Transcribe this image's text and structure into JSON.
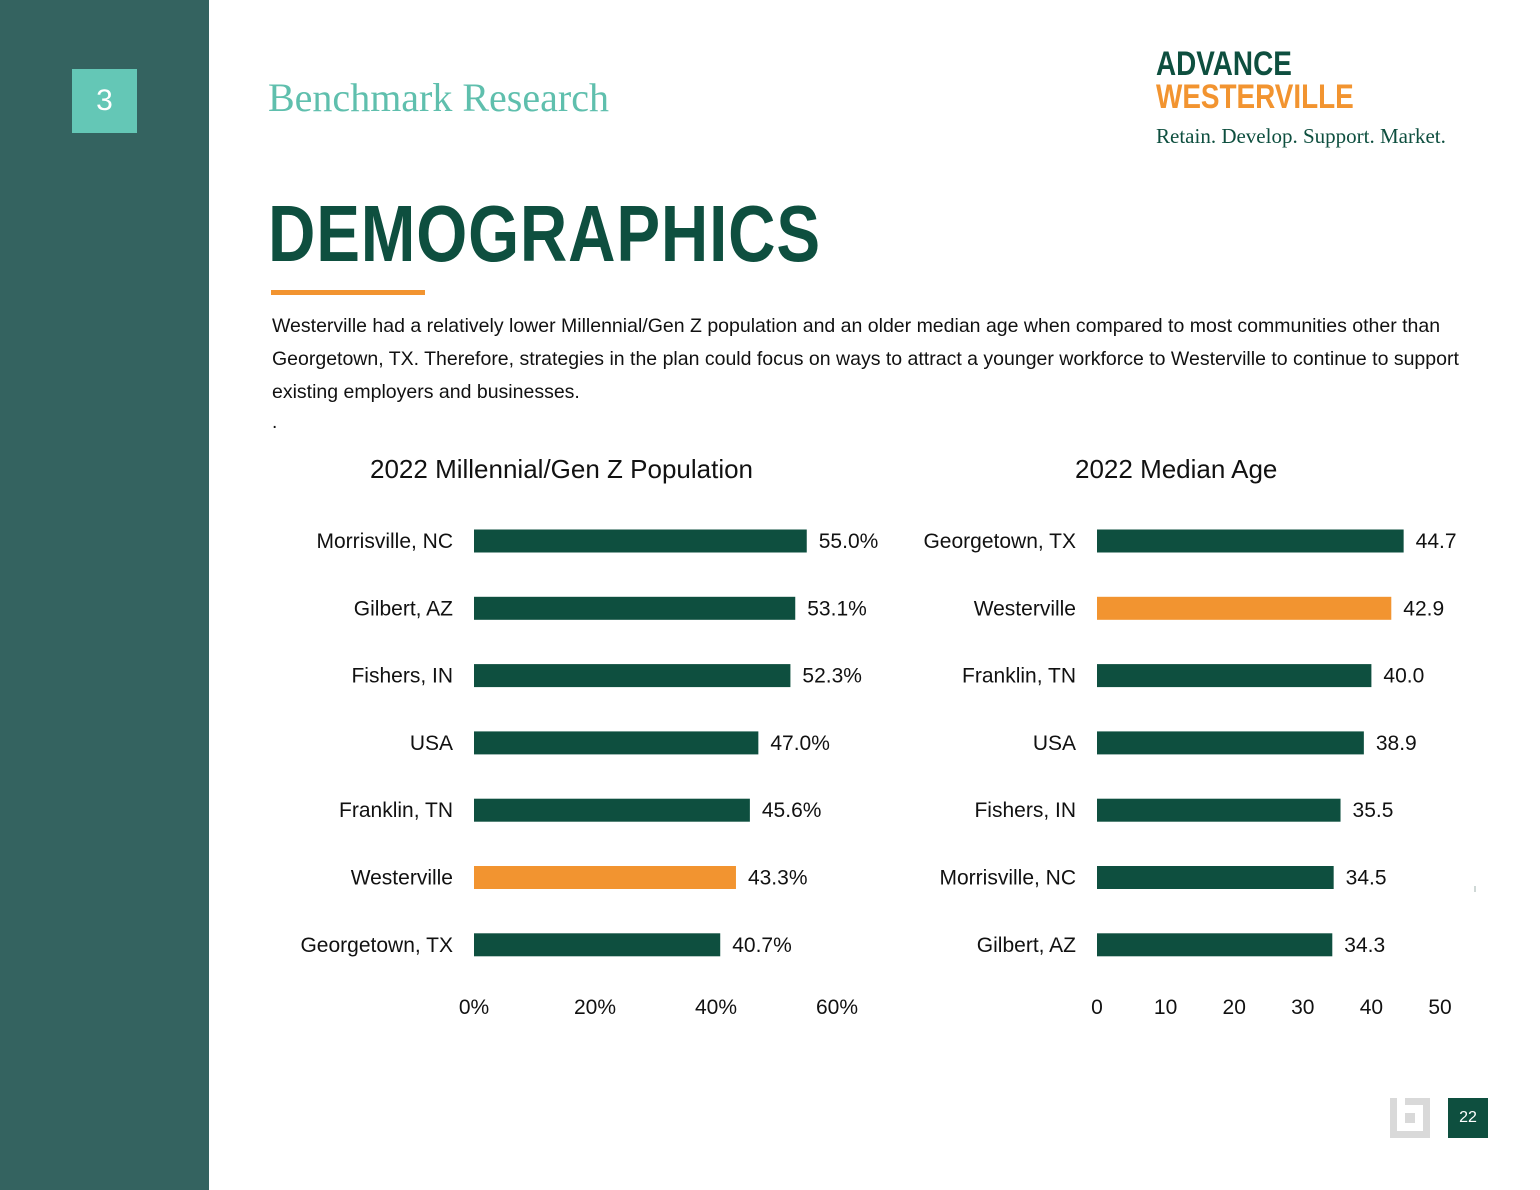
{
  "section": {
    "number": "3",
    "title": "Benchmark Research"
  },
  "logo": {
    "line1": "ADVANCE",
    "line2": "WESTERVILLE",
    "tagline": "Retain. Develop. Support. Market."
  },
  "page": {
    "heading": "DEMOGRAPHICS",
    "intro": "Westerville had a relatively lower Millennial/Gen Z population and an older median age when compared to most communities other than Georgetown, TX. Therefore, strategies in the plan could focus on ways to attract a younger workforce to Westerville to continue to support existing employers and businesses.",
    "stray_dot": ".",
    "page_number": "22"
  },
  "colors": {
    "primary": "#0e4f3f",
    "highlight": "#f29430",
    "sidebar": "#346360",
    "badge": "#64c7b6"
  },
  "chart_data": [
    {
      "type": "bar",
      "orientation": "horizontal",
      "title": "2022 Millennial/Gen Z Population",
      "categories": [
        "Morrisville, NC",
        "Gilbert, AZ",
        "Fishers, IN",
        "USA",
        "Franklin, TN",
        "Westerville",
        "Georgetown, TX"
      ],
      "values": [
        55.0,
        53.1,
        52.3,
        47.0,
        45.6,
        43.3,
        40.7
      ],
      "value_labels": [
        "55.0%",
        "53.1%",
        "52.3%",
        "47.0%",
        "45.6%",
        "43.3%",
        "40.7%"
      ],
      "highlight": "Westerville",
      "xlim": [
        0,
        60
      ],
      "xticks": [
        0,
        20,
        40,
        60
      ],
      "xtick_labels": [
        "0%",
        "20%",
        "40%",
        "60%"
      ],
      "grid": false
    },
    {
      "type": "bar",
      "orientation": "horizontal",
      "title": "2022 Median Age",
      "categories": [
        "Georgetown, TX",
        "Westerville",
        "Franklin, TN",
        "USA",
        "Fishers, IN",
        "Morrisville, NC",
        "Gilbert, AZ"
      ],
      "values": [
        44.7,
        42.9,
        40.0,
        38.9,
        35.5,
        34.5,
        34.3
      ],
      "value_labels": [
        "44.7",
        "42.9",
        "40.0",
        "38.9",
        "35.5",
        "34.5",
        "34.3"
      ],
      "highlight": "Westerville",
      "xlim": [
        0,
        50
      ],
      "xticks": [
        0,
        10,
        20,
        30,
        40,
        50
      ],
      "xtick_labels": [
        "0",
        "10",
        "20",
        "30",
        "40",
        "50"
      ],
      "grid": false
    }
  ]
}
